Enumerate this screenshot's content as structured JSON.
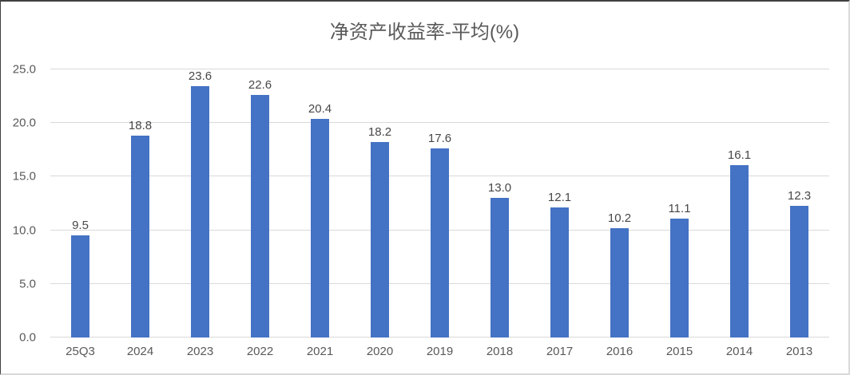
{
  "chart_data": {
    "type": "bar",
    "title": "净资产收益率-平均(%)",
    "categories": [
      "25Q3",
      "2024",
      "2023",
      "2022",
      "2021",
      "2020",
      "2019",
      "2018",
      "2017",
      "2016",
      "2015",
      "2014",
      "2013"
    ],
    "values": [
      9.5,
      18.8,
      23.6,
      22.6,
      20.4,
      18.2,
      17.6,
      13.0,
      12.1,
      10.2,
      11.1,
      16.1,
      12.3
    ],
    "value_labels": [
      "9.5",
      "18.8",
      "23.6",
      "22.6",
      "20.4",
      "18.2",
      "17.6",
      "13.0",
      "12.1",
      "10.2",
      "11.1",
      "16.1",
      "12.3"
    ],
    "xlabel": "",
    "ylabel": "",
    "ylim": [
      0,
      25
    ],
    "yticks": [
      {
        "value": 25,
        "label": "25.0"
      },
      {
        "value": 20,
        "label": "20.0"
      },
      {
        "value": 15,
        "label": "15.0"
      },
      {
        "value": 10,
        "label": "10.0"
      },
      {
        "value": 5,
        "label": "5.0"
      },
      {
        "value": 0,
        "label": "0.0"
      }
    ],
    "grid": true,
    "legend": "none",
    "colors": {
      "bar": "#4472C4",
      "gridline": "#d9d9d9",
      "axis_text": "#595959",
      "data_label_text": "#474747",
      "title_text": "#595959",
      "background": "#ffffff"
    }
  }
}
